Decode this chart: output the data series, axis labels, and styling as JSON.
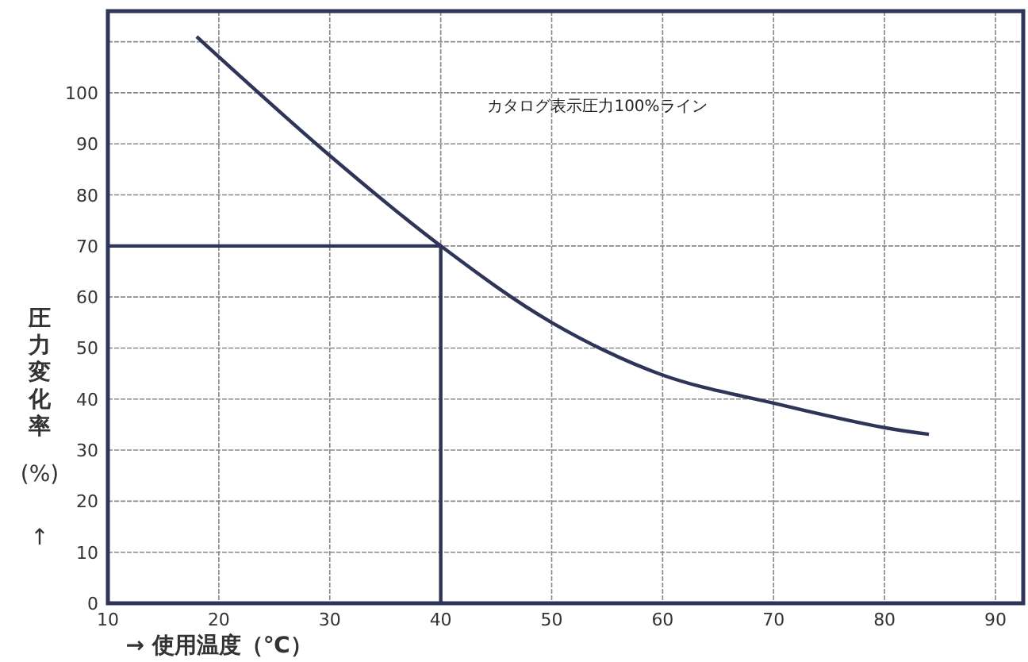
{
  "chart_data": {
    "type": "line",
    "xlabel": "→ 使用温度（℃）",
    "ylabel": "圧力変化率 (%) ↑",
    "annotations": [
      "カタログ表示圧力100%ライン"
    ],
    "xlim": [
      10,
      92.5
    ],
    "ylim": [
      0,
      116
    ],
    "xticks": [
      10,
      20,
      30,
      40,
      50,
      60,
      70,
      80,
      90
    ],
    "yticks": [
      0,
      10,
      20,
      30,
      40,
      50,
      60,
      70,
      80,
      90,
      100,
      {
        "value": 110,
        "label": null
      }
    ],
    "grid": true,
    "marker": "none",
    "line_style": "solid",
    "series": [
      {
        "color": "#2e3558",
        "x": [
          18,
          30,
          40,
          50,
          60,
          70,
          80,
          84
        ],
        "values": [
          111,
          87.7,
          70,
          55,
          44.7,
          39.2,
          34.4,
          33.1
        ]
      },
      {
        "color": "#2e3558",
        "x": [
          10,
          40,
          40
        ],
        "values": [
          70,
          70,
          0
        ]
      }
    ]
  }
}
